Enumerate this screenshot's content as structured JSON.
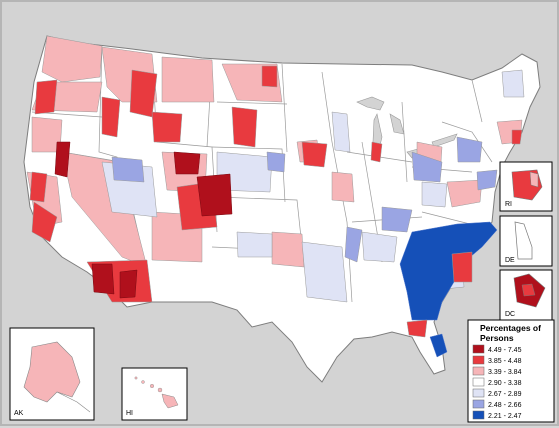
{
  "insets": [
    {
      "id": "rhode-island",
      "label": "RI"
    },
    {
      "id": "delaware",
      "label": "DE"
    },
    {
      "id": "district-of-columbia",
      "label": "DC"
    },
    {
      "id": "alaska",
      "label": "AK"
    },
    {
      "id": "hawaii",
      "label": "HI"
    }
  ],
  "legend": {
    "title_line1": "Percentages of",
    "title_line2": "Persons",
    "classes": [
      {
        "label": "4.49 - 7.45",
        "color": "#b0101c"
      },
      {
        "label": "3.85 - 4.48",
        "color": "#e83a3f"
      },
      {
        "label": "3.39 - 3.84",
        "color": "#f6b5b8"
      },
      {
        "label": "2.90 - 3.38",
        "color": "#ffffff"
      },
      {
        "label": "2.67 - 2.89",
        "color": "#dfe3f5"
      },
      {
        "label": "2.48 - 2.66",
        "color": "#9aa5e3"
      },
      {
        "label": "2.21 - 2.47",
        "color": "#1550b8"
      }
    ]
  },
  "colors": {
    "background": "#d3d3d3",
    "boundary": "#8a8a8a"
  }
}
